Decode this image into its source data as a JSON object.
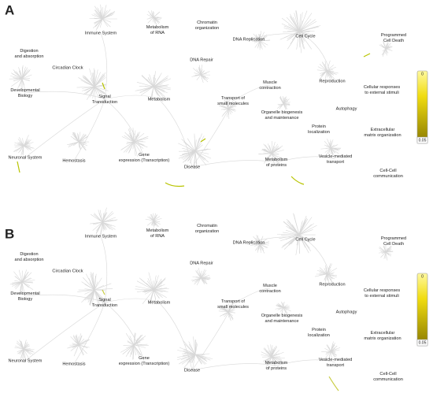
{
  "panels": [
    {
      "label": "A",
      "colorbar": {
        "top": 0,
        "bottom": 0.05
      },
      "nodes": [
        {
          "lines": [
            "Immune System"
          ]
        },
        {
          "lines": [
            "Metabolism",
            "of RNA"
          ]
        },
        {
          "lines": [
            "Chromatin",
            "organization"
          ]
        },
        {
          "lines": [
            "DNA Replication"
          ]
        },
        {
          "lines": [
            "Cell Cycle"
          ]
        },
        {
          "lines": [
            "Programmed",
            "Cell Death"
          ]
        },
        {
          "lines": [
            "Digestion",
            "and absorption"
          ]
        },
        {
          "lines": [
            "Circadian Clock"
          ]
        },
        {
          "lines": [
            "DNA Repair"
          ]
        },
        {
          "lines": [
            "Developmental",
            "Biology"
          ]
        },
        {
          "lines": [
            "Signal",
            "Transduction"
          ]
        },
        {
          "lines": [
            "Metabolism"
          ]
        },
        {
          "lines": [
            "Transport of",
            "small molecules"
          ]
        },
        {
          "lines": [
            "Muscle",
            "contraction"
          ]
        },
        {
          "lines": [
            "Reproduction"
          ]
        },
        {
          "lines": [
            "Cellular responses",
            "to external stimuli"
          ]
        },
        {
          "lines": [
            "Autophagy"
          ]
        },
        {
          "lines": [
            "Organelle biogenesis",
            "and maintenance"
          ]
        },
        {
          "lines": [
            "Protein",
            "localization"
          ]
        },
        {
          "lines": [
            "Extracellular",
            "matrix organization"
          ]
        },
        {
          "lines": [
            "Neuronal System"
          ]
        },
        {
          "lines": [
            "Hemostasis"
          ]
        },
        {
          "lines": [
            "Gene",
            "expression (Transcription)"
          ]
        },
        {
          "lines": [
            "Disease"
          ]
        },
        {
          "lines": [
            "Metabolism",
            "of proteins"
          ]
        },
        {
          "lines": [
            "Vesicle-mediated",
            "transport"
          ]
        },
        {
          "lines": [
            "Cell-Cell",
            "communication"
          ]
        }
      ]
    },
    {
      "label": "B",
      "colorbar": {
        "top": 0,
        "bottom": 0.05
      },
      "nodes": [
        {
          "lines": [
            "Immune System"
          ]
        },
        {
          "lines": [
            "Metabolism",
            "of RNA"
          ]
        },
        {
          "lines": [
            "Chromatin",
            "organization"
          ]
        },
        {
          "lines": [
            "DNA Replication"
          ]
        },
        {
          "lines": [
            "Cell Cycle"
          ]
        },
        {
          "lines": [
            "Programmed",
            "Cell Death"
          ]
        },
        {
          "lines": [
            "Digestion",
            "and absorption"
          ]
        },
        {
          "lines": [
            "Circadian Clock"
          ]
        },
        {
          "lines": [
            "DNA Repair"
          ]
        },
        {
          "lines": [
            "Developmental",
            "Biology"
          ]
        },
        {
          "lines": [
            "Signal",
            "Transduction"
          ]
        },
        {
          "lines": [
            "Metabolism"
          ]
        },
        {
          "lines": [
            "Transport of",
            "small molecules"
          ]
        },
        {
          "lines": [
            "Muscle",
            "contraction"
          ]
        },
        {
          "lines": [
            "Reproduction"
          ]
        },
        {
          "lines": [
            "Cellular responses",
            "to external stimuli"
          ]
        },
        {
          "lines": [
            "Autophagy"
          ]
        },
        {
          "lines": [
            "Organelle biogenesis",
            "and maintenance"
          ]
        },
        {
          "lines": [
            "Protein",
            "localization"
          ]
        },
        {
          "lines": [
            "Extracellular",
            "matrix organization"
          ]
        },
        {
          "lines": [
            "Neuronal System"
          ]
        },
        {
          "lines": [
            "Hemostasis"
          ]
        },
        {
          "lines": [
            "Gene",
            "expression (Transcription)"
          ]
        },
        {
          "lines": [
            "Disease"
          ]
        },
        {
          "lines": [
            "Metabolism",
            "of proteins"
          ]
        },
        {
          "lines": [
            "Vesicle-mediated",
            "transport"
          ]
        },
        {
          "lines": [
            "Cell-Cell",
            "communication"
          ]
        }
      ]
    }
  ]
}
